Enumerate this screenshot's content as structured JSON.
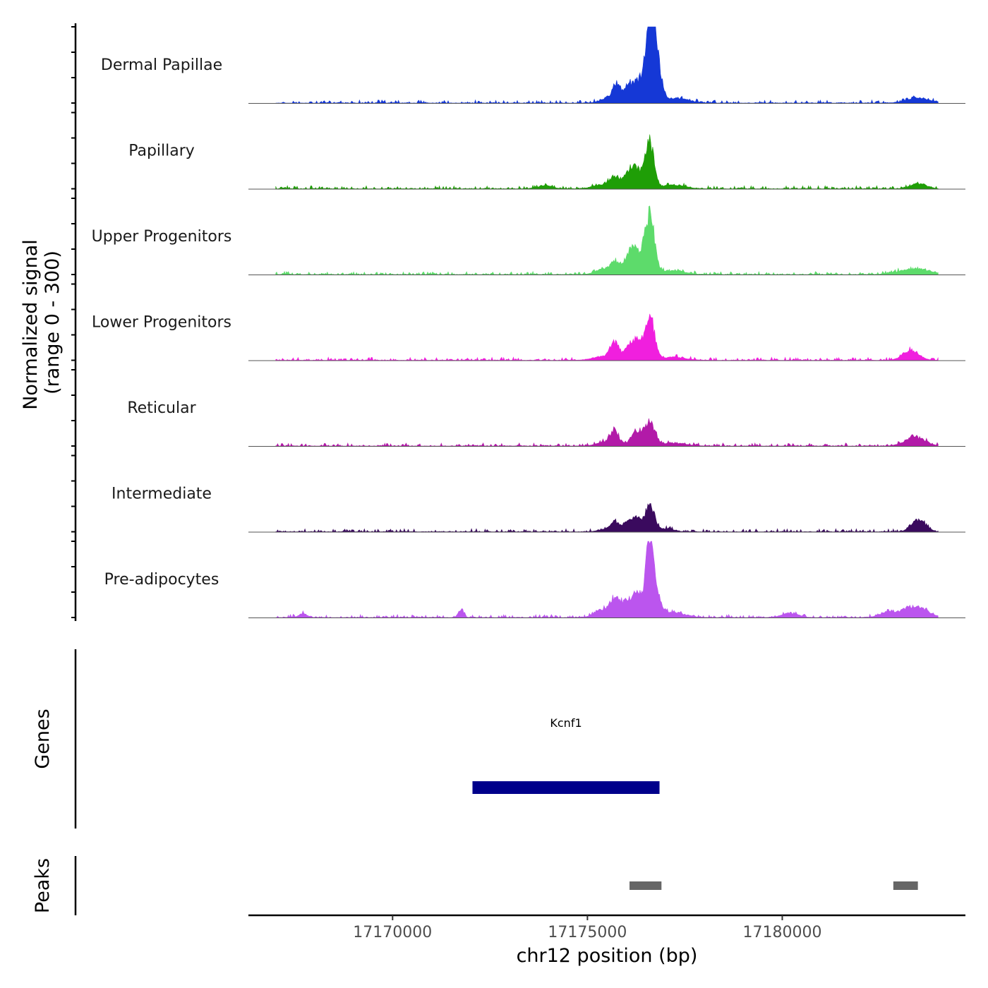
{
  "chart_data": {
    "type": "area",
    "title": "",
    "ylabel_line1": "Normalized signal",
    "ylabel_line2": "(range 0 - 300)",
    "xlabel": "chr12 position (bp)",
    "chromosome": "chr12",
    "xlim": [
      17166300,
      17184700
    ],
    "ylim": [
      0,
      300
    ],
    "x_ticks": [
      17170000,
      17175000,
      17180000
    ],
    "x_tick_labels": [
      "17170000",
      "17175000",
      "17180000"
    ],
    "signal_range_bp": [
      17167000,
      17184000
    ],
    "tracks": [
      {
        "name": "Dermal Papillae",
        "color": "#1538d6",
        "peaks": [
          {
            "x": 17176620,
            "y": 290,
            "w": 110
          },
          {
            "x": 17176740,
            "y": 150,
            "w": 140
          },
          {
            "x": 17176350,
            "y": 80,
            "w": 150
          },
          {
            "x": 17176050,
            "y": 55,
            "w": 140
          },
          {
            "x": 17175750,
            "y": 60,
            "w": 100
          },
          {
            "x": 17175550,
            "y": 20,
            "w": 200
          },
          {
            "x": 17177300,
            "y": 18,
            "w": 300
          },
          {
            "x": 17183500,
            "y": 18,
            "w": 300
          }
        ]
      },
      {
        "name": "Papillary",
        "color": "#1f9e07",
        "peaks": [
          {
            "x": 17176600,
            "y": 180,
            "w": 110
          },
          {
            "x": 17176280,
            "y": 65,
            "w": 140
          },
          {
            "x": 17176050,
            "y": 55,
            "w": 140
          },
          {
            "x": 17175700,
            "y": 40,
            "w": 120
          },
          {
            "x": 17175400,
            "y": 15,
            "w": 250
          },
          {
            "x": 17177200,
            "y": 15,
            "w": 300
          },
          {
            "x": 17173900,
            "y": 12,
            "w": 200
          },
          {
            "x": 17183500,
            "y": 20,
            "w": 200
          }
        ]
      },
      {
        "name": "Upper Progenitors",
        "color": "#5ddb6b",
        "peaks": [
          {
            "x": 17176600,
            "y": 230,
            "w": 120
          },
          {
            "x": 17176270,
            "y": 80,
            "w": 150
          },
          {
            "x": 17176050,
            "y": 55,
            "w": 140
          },
          {
            "x": 17175700,
            "y": 45,
            "w": 110
          },
          {
            "x": 17175400,
            "y": 20,
            "w": 200
          },
          {
            "x": 17177200,
            "y": 15,
            "w": 300
          },
          {
            "x": 17183400,
            "y": 22,
            "w": 400
          }
        ]
      },
      {
        "name": "Lower Progenitors",
        "color": "#f01fde",
        "peaks": [
          {
            "x": 17176600,
            "y": 170,
            "w": 120
          },
          {
            "x": 17176270,
            "y": 70,
            "w": 130
          },
          {
            "x": 17176050,
            "y": 40,
            "w": 120
          },
          {
            "x": 17175700,
            "y": 65,
            "w": 110
          },
          {
            "x": 17175400,
            "y": 15,
            "w": 250
          },
          {
            "x": 17177200,
            "y": 12,
            "w": 300
          },
          {
            "x": 17183300,
            "y": 40,
            "w": 200
          }
        ]
      },
      {
        "name": "Reticular",
        "color": "#b21aa8",
        "peaks": [
          {
            "x": 17176600,
            "y": 85,
            "w": 130
          },
          {
            "x": 17176270,
            "y": 55,
            "w": 150
          },
          {
            "x": 17175700,
            "y": 50,
            "w": 110
          },
          {
            "x": 17175500,
            "y": 15,
            "w": 250
          },
          {
            "x": 17177200,
            "y": 12,
            "w": 300
          },
          {
            "x": 17183400,
            "y": 35,
            "w": 250
          }
        ]
      },
      {
        "name": "Intermediate",
        "color": "#3a0a5e",
        "peaks": [
          {
            "x": 17176600,
            "y": 110,
            "w": 110
          },
          {
            "x": 17176270,
            "y": 45,
            "w": 130
          },
          {
            "x": 17176050,
            "y": 35,
            "w": 120
          },
          {
            "x": 17175700,
            "y": 35,
            "w": 100
          },
          {
            "x": 17175500,
            "y": 10,
            "w": 200
          },
          {
            "x": 17177000,
            "y": 12,
            "w": 200
          },
          {
            "x": 17183500,
            "y": 45,
            "w": 180
          }
        ]
      },
      {
        "name": "Pre-adipocytes",
        "color": "#bb55ee",
        "peaks": [
          {
            "x": 17176600,
            "y": 250,
            "w": 100
          },
          {
            "x": 17176740,
            "y": 80,
            "w": 140
          },
          {
            "x": 17176300,
            "y": 80,
            "w": 140
          },
          {
            "x": 17176000,
            "y": 60,
            "w": 150
          },
          {
            "x": 17175700,
            "y": 60,
            "w": 120
          },
          {
            "x": 17175400,
            "y": 30,
            "w": 200
          },
          {
            "x": 17171750,
            "y": 28,
            "w": 70
          },
          {
            "x": 17183400,
            "y": 45,
            "w": 300
          },
          {
            "x": 17182700,
            "y": 20,
            "w": 200
          },
          {
            "x": 17177200,
            "y": 20,
            "w": 300
          },
          {
            "x": 17167700,
            "y": 15,
            "w": 100
          },
          {
            "x": 17180200,
            "y": 18,
            "w": 200
          }
        ]
      }
    ],
    "genes_panel": {
      "label": "Genes",
      "genes": [
        {
          "name": "Kcnf1",
          "start": 17172050,
          "end": 17176850,
          "color": "#00008b"
        }
      ]
    },
    "peaks_panel": {
      "label": "Peaks",
      "color": "#666666",
      "regions": [
        {
          "start": 17176080,
          "end": 17176900
        },
        {
          "start": 17182850,
          "end": 17183480
        }
      ]
    }
  }
}
